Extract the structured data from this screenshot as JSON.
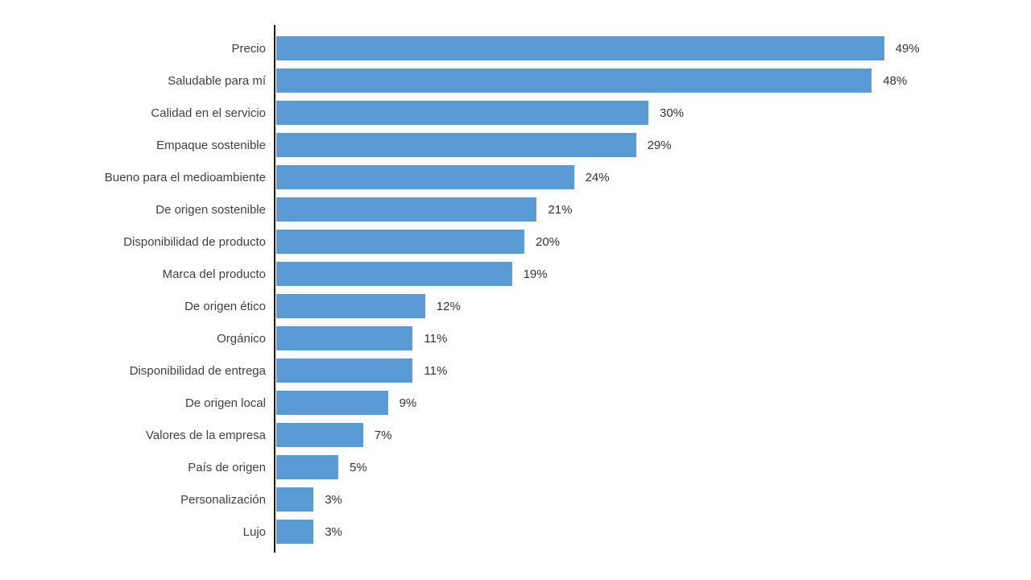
{
  "chart_data": {
    "type": "bar",
    "orientation": "horizontal",
    "categories": [
      "Precio",
      "Saludable para mí",
      "Calidad en el servicio",
      "Empaque sostenible",
      "Bueno para el medioambiente",
      "De origen sostenible",
      "Disponibilidad de producto",
      "Marca del producto",
      "De origen ético",
      "Orgánico",
      "Disponibilidad de entrega",
      "De origen local",
      "Valores de la empresa",
      "País de origen",
      "Personalización",
      "Lujo"
    ],
    "values": [
      49,
      48,
      30,
      29,
      24,
      21,
      20,
      19,
      12,
      11,
      11,
      9,
      7,
      5,
      3,
      3
    ],
    "value_suffix": "%",
    "xlim": [
      0,
      50
    ],
    "grid": false,
    "bar_color": "#5B9BD5",
    "axis_color": "#1a1a1a",
    "label_color": "#404040",
    "value_color": "#333333"
  }
}
